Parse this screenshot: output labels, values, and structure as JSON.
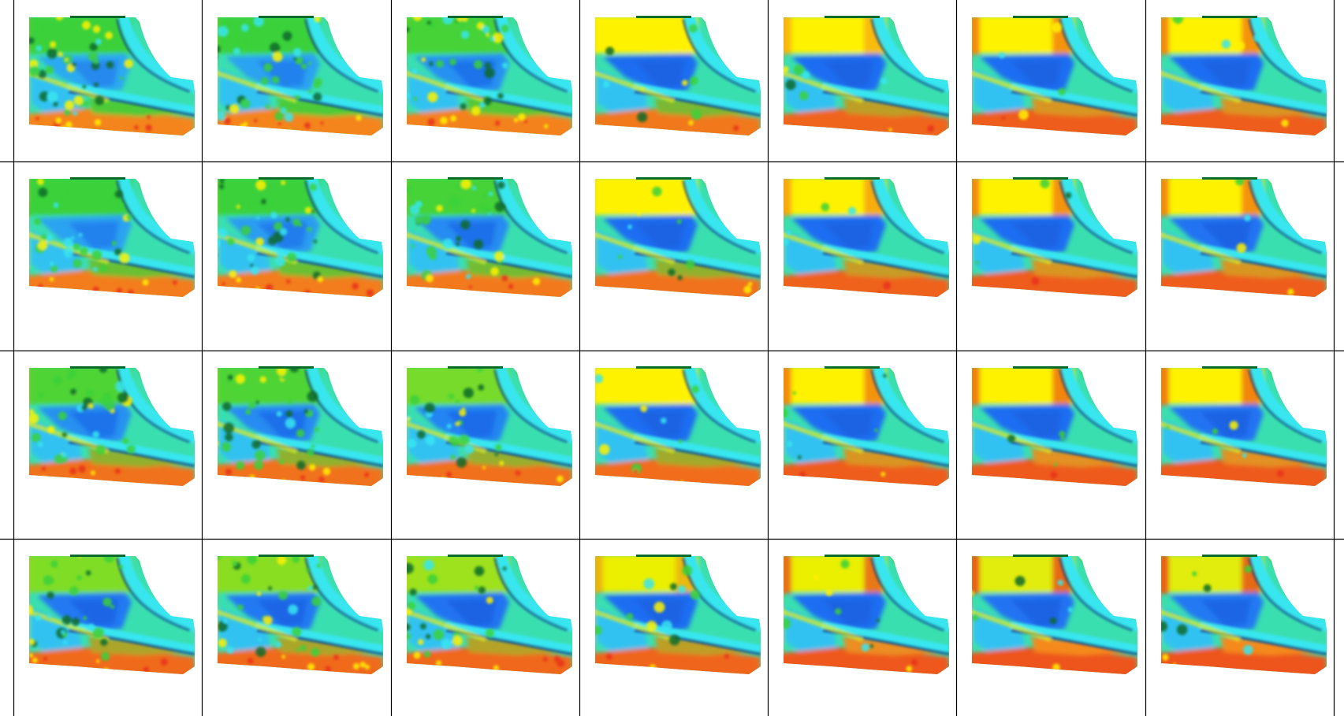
{
  "grid": {
    "rows": 4,
    "cols": 7,
    "colors": {
      "background": "#ffffff",
      "gridline": "#000000",
      "red": "#e8321a",
      "orange": "#f58a1f",
      "yellow": "#fff200",
      "green": "#3bd13a",
      "cyan": "#39e6f0",
      "blue": "#1f6df2",
      "navy": "#0a2a8c",
      "darkgreen": "#0b6b2a"
    },
    "cells": [
      [
        {
          "yellow_band": 0.0,
          "red_intensity": 0.1,
          "noise": 1.0,
          "blue_pool": 0.5
        },
        {
          "yellow_band": 0.0,
          "red_intensity": 0.1,
          "noise": 1.0,
          "blue_pool": 0.55
        },
        {
          "yellow_band": 0.05,
          "red_intensity": 0.15,
          "noise": 0.9,
          "blue_pool": 0.7
        },
        {
          "yellow_band": 1.0,
          "red_intensity": 0.35,
          "noise": 0.2,
          "blue_pool": 1.0
        },
        {
          "yellow_band": 1.0,
          "red_intensity": 0.7,
          "noise": 0.15,
          "blue_pool": 1.0
        },
        {
          "yellow_band": 1.0,
          "red_intensity": 0.85,
          "noise": 0.1,
          "blue_pool": 1.0
        },
        {
          "yellow_band": 1.0,
          "red_intensity": 0.85,
          "noise": 0.1,
          "blue_pool": 1.0
        }
      ],
      [
        {
          "yellow_band": 0.0,
          "red_intensity": 0.25,
          "noise": 1.0,
          "blue_pool": 0.55
        },
        {
          "yellow_band": 0.0,
          "red_intensity": 0.25,
          "noise": 1.0,
          "blue_pool": 0.6
        },
        {
          "yellow_band": 0.05,
          "red_intensity": 0.3,
          "noise": 0.9,
          "blue_pool": 0.75
        },
        {
          "yellow_band": 1.0,
          "red_intensity": 0.45,
          "noise": 0.2,
          "blue_pool": 1.0
        },
        {
          "yellow_band": 1.0,
          "red_intensity": 0.75,
          "noise": 0.15,
          "blue_pool": 1.0
        },
        {
          "yellow_band": 1.0,
          "red_intensity": 0.85,
          "noise": 0.1,
          "blue_pool": 1.0
        },
        {
          "yellow_band": 1.0,
          "red_intensity": 0.85,
          "noise": 0.1,
          "blue_pool": 0.95
        }
      ],
      [
        {
          "yellow_band": 0.1,
          "red_intensity": 0.45,
          "noise": 0.9,
          "blue_pool": 0.7
        },
        {
          "yellow_band": 0.1,
          "red_intensity": 0.45,
          "noise": 0.9,
          "blue_pool": 0.75
        },
        {
          "yellow_band": 0.3,
          "red_intensity": 0.5,
          "noise": 0.7,
          "blue_pool": 0.8
        },
        {
          "yellow_band": 1.0,
          "red_intensity": 0.55,
          "noise": 0.2,
          "blue_pool": 1.0
        },
        {
          "yellow_band": 1.0,
          "red_intensity": 0.85,
          "noise": 0.15,
          "blue_pool": 1.0
        },
        {
          "yellow_band": 1.0,
          "red_intensity": 0.9,
          "noise": 0.1,
          "blue_pool": 1.0
        },
        {
          "yellow_band": 1.0,
          "red_intensity": 0.9,
          "noise": 0.1,
          "blue_pool": 0.95
        }
      ],
      [
        {
          "yellow_band": 0.35,
          "red_intensity": 0.6,
          "noise": 0.8,
          "blue_pool": 0.9
        },
        {
          "yellow_band": 0.4,
          "red_intensity": 0.6,
          "noise": 0.8,
          "blue_pool": 0.9
        },
        {
          "yellow_band": 0.5,
          "red_intensity": 0.65,
          "noise": 0.6,
          "blue_pool": 0.95
        },
        {
          "yellow_band": 0.9,
          "red_intensity": 0.7,
          "noise": 0.3,
          "blue_pool": 1.0
        },
        {
          "yellow_band": 0.9,
          "red_intensity": 0.95,
          "noise": 0.2,
          "blue_pool": 1.0
        },
        {
          "yellow_band": 0.85,
          "red_intensity": 1.0,
          "noise": 0.15,
          "blue_pool": 0.95
        },
        {
          "yellow_band": 0.85,
          "red_intensity": 1.0,
          "noise": 0.15,
          "blue_pool": 0.9
        }
      ]
    ]
  }
}
